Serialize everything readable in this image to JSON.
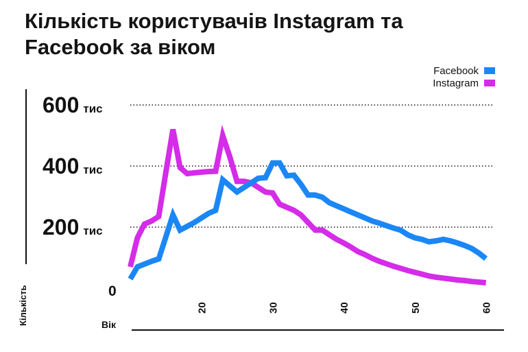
{
  "title": "Кількість користувачів Instagram та Facebook за віком",
  "legend": [
    {
      "name": "Facebook",
      "color": "#1b87f5"
    },
    {
      "name": "Instagram",
      "color": "#d42ce8"
    }
  ],
  "chart_data": {
    "type": "line",
    "title": "Кількість користувачів Instagram та Facebook за віком",
    "xlabel": "Вік",
    "ylabel": "Кількість",
    "xlim": [
      10,
      61
    ],
    "ylim": [
      0,
      600000
    ],
    "grid": "horizontal dotted",
    "legend_position": "top-right",
    "x_ticks": [
      20,
      30,
      40,
      50,
      60
    ],
    "y_ticks": [
      {
        "value": 0,
        "label": "0",
        "unit": ""
      },
      {
        "value": 200000,
        "label": "200",
        "unit": "тис"
      },
      {
        "value": 400000,
        "label": "400",
        "unit": "тис"
      },
      {
        "value": 600000,
        "label": "600",
        "unit": "тис"
      }
    ],
    "series": [
      {
        "name": "Facebook",
        "color": "#1b87f5",
        "x": [
          10,
          11,
          13,
          14,
          16,
          17,
          19,
          21,
          22,
          23,
          25,
          26,
          27,
          28,
          29,
          30,
          31,
          32,
          33,
          34,
          35,
          36,
          37,
          38,
          39,
          40,
          41,
          42,
          43,
          44,
          45,
          46,
          47,
          48,
          49,
          50,
          51,
          52,
          53,
          54,
          55,
          56,
          57,
          58,
          59,
          60
        ],
        "y": [
          30000,
          70000,
          88000,
          96000,
          240000,
          190000,
          215000,
          245000,
          255000,
          355000,
          315000,
          330000,
          345000,
          360000,
          362000,
          410000,
          410000,
          368000,
          370000,
          340000,
          305000,
          305000,
          298000,
          280000,
          270000,
          260000,
          250000,
          240000,
          230000,
          220000,
          213000,
          205000,
          197000,
          190000,
          175000,
          165000,
          160000,
          152000,
          155000,
          160000,
          155000,
          148000,
          140000,
          130000,
          115000,
          97000
        ]
      },
      {
        "name": "Instagram",
        "color": "#d42ce8",
        "x": [
          10,
          11,
          12,
          13,
          14,
          15,
          16,
          17,
          18,
          19,
          20,
          21,
          22,
          23,
          24,
          25,
          26,
          27,
          28,
          29,
          30,
          31,
          32,
          33,
          34,
          35,
          36,
          37,
          38,
          39,
          40,
          41,
          42,
          43,
          44,
          45,
          46,
          47,
          48,
          49,
          50,
          51,
          52,
          53,
          54,
          55,
          56,
          57,
          58,
          59,
          60
        ],
        "y": [
          70000,
          165000,
          210000,
          220000,
          235000,
          380000,
          520000,
          395000,
          375000,
          378000,
          380000,
          382000,
          383000,
          500000,
          430000,
          350000,
          350000,
          345000,
          330000,
          315000,
          312000,
          275000,
          265000,
          255000,
          240000,
          215000,
          190000,
          190000,
          175000,
          160000,
          148000,
          135000,
          120000,
          110000,
          98000,
          88000,
          80000,
          72000,
          65000,
          58000,
          52000,
          46000,
          40000,
          36000,
          33000,
          30000,
          27000,
          25000,
          22000,
          20000,
          18000
        ]
      }
    ]
  }
}
